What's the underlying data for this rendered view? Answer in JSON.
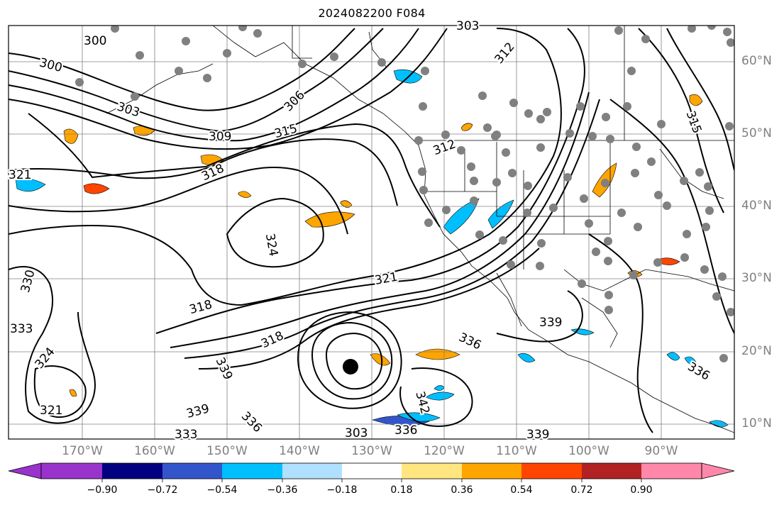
{
  "title": "2024082200 F084",
  "lat_labels": [
    "60°N",
    "50°N",
    "40°N",
    "30°N",
    "20°N",
    "10°N"
  ],
  "lon_labels": [
    "170°W",
    "160°W",
    "150°W",
    "140°W",
    "130°W",
    "120°W",
    "110°W",
    "100°W",
    "90°W"
  ],
  "contour_labels": [
    "300",
    "303",
    "306",
    "309",
    "312",
    "315",
    "318",
    "321",
    "324",
    "330",
    "333",
    "336",
    "339",
    "342",
    "300",
    "303",
    "324",
    "318",
    "321",
    "318",
    "336",
    "339",
    "333",
    "321",
    "339",
    "336",
    "315",
    "312",
    "303",
    "336",
    "339"
  ],
  "colorbar": {
    "ticks": [
      "−0.90",
      "−0.72",
      "−0.54",
      "−0.36",
      "−0.18",
      "0.18",
      "0.36",
      "0.54",
      "0.72",
      "0.90"
    ],
    "colors": [
      "#9933cc",
      "#000080",
      "#3355cc",
      "#00bfff",
      "#b0e0ff",
      "#ffffff",
      "#ffe680",
      "#ffa500",
      "#ff4500",
      "#b22222",
      "#ff88aa"
    ]
  },
  "colors": {
    "contour": "#000000",
    "grid": "#808080",
    "station_dot": "#808080",
    "coast": "#000000"
  }
}
